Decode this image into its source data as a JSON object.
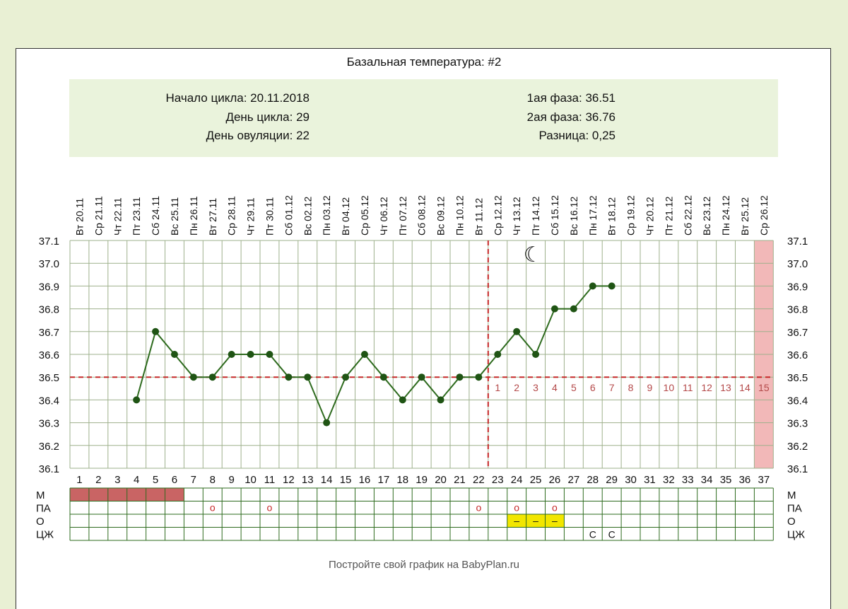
{
  "title": "Базальная температура: #2",
  "info": {
    "cycle_start_label": "Начало цикла:",
    "cycle_start": "20.11.2018",
    "cycle_day_label": "День цикла:",
    "cycle_day": "29",
    "ovulation_day_label": "День овуляции:",
    "ovulation_day": "22",
    "phase1_label": "1ая фаза:",
    "phase1": "36.51",
    "phase2_label": "2ая фаза:",
    "phase2": "36.76",
    "diff_label": "Разница:",
    "diff": "0,25"
  },
  "footer": "Постройте свой график на BabyPlan.ru",
  "chart_data": {
    "type": "line",
    "x": [
      1,
      2,
      3,
      4,
      5,
      6,
      7,
      8,
      9,
      10,
      11,
      12,
      13,
      14,
      15,
      16,
      17,
      18,
      19,
      20,
      21,
      22,
      23,
      24,
      25,
      26,
      27,
      28,
      29,
      30,
      31,
      32,
      33,
      34,
      35,
      36,
      37
    ],
    "dates": [
      "Вт 20.11",
      "Ср 21.11",
      "Чт 22.11",
      "Пт 23.11",
      "Сб 24.11",
      "Вс 25.11",
      "Пн 26.11",
      "Вт 27.11",
      "Ср 28.11",
      "Чт 29.11",
      "Пт 30.11",
      "Сб 01.12",
      "Вс 02.12",
      "Пн 03.12",
      "Вт 04.12",
      "Ср 05.12",
      "Чт 06.12",
      "Пт 07.12",
      "Сб 08.12",
      "Вс 09.12",
      "Пн 10.12",
      "Вт 11.12",
      "Ср 12.12",
      "Чт 13.12",
      "Пт 14.12",
      "Сб 15.12",
      "Вс 16.12",
      "Пн 17.12",
      "Вт 18.12",
      "Ср 19.12",
      "Чт 20.12",
      "Пт 21.12",
      "Сб 22.12",
      "Вс 23.12",
      "Пн 24.12",
      "Вт 25.12",
      "Ср 26.12"
    ],
    "temperatures": [
      null,
      null,
      null,
      36.4,
      36.7,
      36.6,
      36.5,
      36.5,
      36.6,
      36.6,
      36.6,
      36.5,
      36.5,
      36.3,
      36.5,
      36.6,
      36.5,
      36.4,
      36.5,
      36.4,
      36.5,
      36.5,
      36.6,
      36.7,
      36.6,
      36.8,
      36.8,
      36.9,
      36.9,
      null,
      null,
      null,
      null,
      null,
      null,
      null,
      null
    ],
    "y_ticks": [
      "37.1",
      "37.0",
      "36.9",
      "36.8",
      "36.7",
      "36.6",
      "36.5",
      "36.4",
      "36.3",
      "36.2",
      "36.1"
    ],
    "ylim": [
      36.1,
      37.1
    ],
    "coverline": 36.5,
    "ovulation_day": 22,
    "luteal_day_labels": [
      "1",
      "2",
      "3",
      "4",
      "5",
      "6",
      "7",
      "8",
      "9",
      "10",
      "11",
      "12",
      "13",
      "14",
      "15"
    ],
    "luteal_start_day": 23,
    "highlight_day": 37,
    "moon_day": 25,
    "moon_symbol": "☾",
    "rows": [
      {
        "label": "М",
        "marks": {
          "1": "bar",
          "2": "bar",
          "3": "bar",
          "4": "bar",
          "5": "bar",
          "6": "bar"
        }
      },
      {
        "label": "ПА",
        "marks": {
          "8": "о",
          "11": "о",
          "22": "о",
          "24": "о",
          "26": "о"
        }
      },
      {
        "label": "О",
        "marks": {
          "24": "–",
          "25": "–",
          "26": "–"
        }
      },
      {
        "label": "ЦЖ",
        "marks": {
          "28": "С",
          "29": "С"
        }
      }
    ],
    "colors": {
      "line": "#2e6b1e",
      "point": "#1f5414",
      "coverline": "#c62828",
      "luteal_label": "#b44a4a",
      "highlight": "#f2b8b8",
      "menstruation": "#c96464",
      "mucus": "#f2e600",
      "grid": "#9eb08c"
    }
  }
}
